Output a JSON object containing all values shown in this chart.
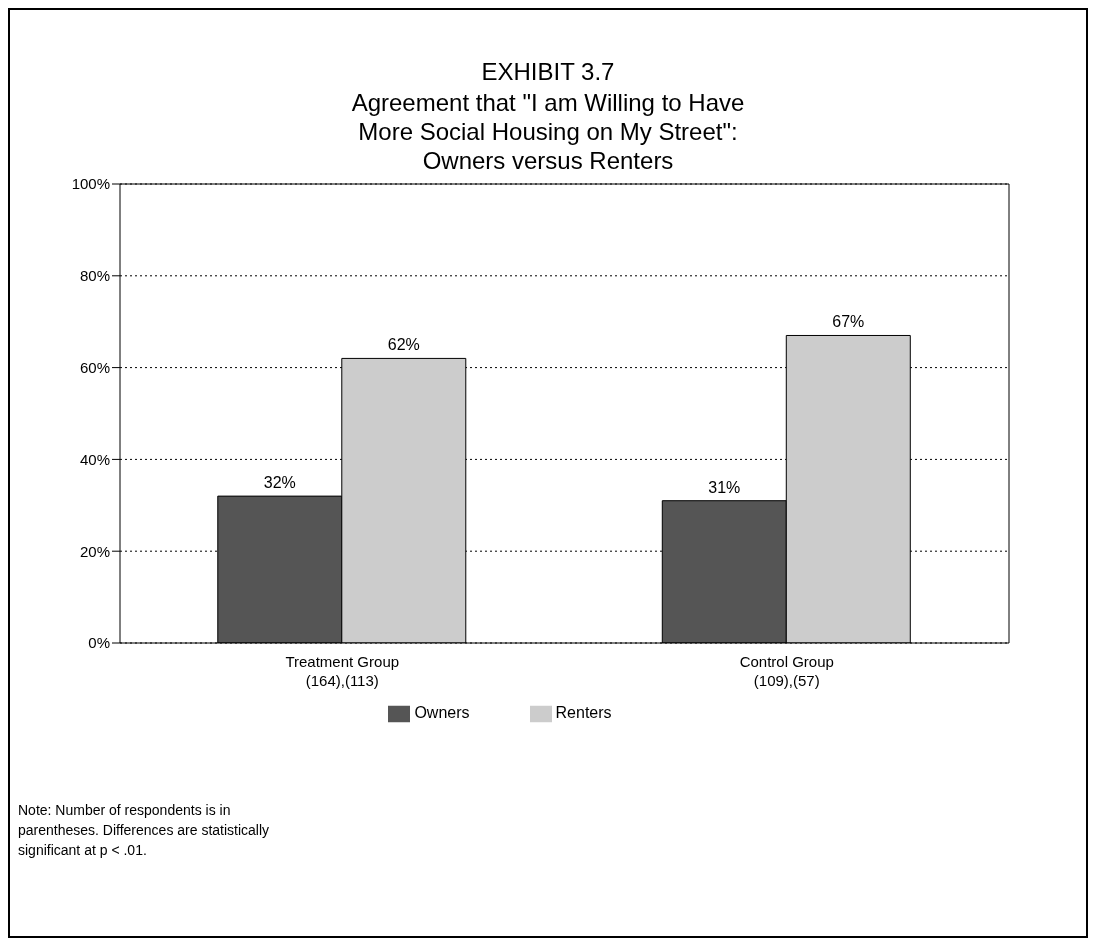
{
  "chart_data": {
    "type": "bar",
    "title": "EXHIBIT 3.7",
    "subtitle": "Agreement that \"I am Willing to Have More Social Housing on My Street\": Owners versus Renters",
    "categories": [
      "Treatment Group\n(164),(113)",
      "Control Group\n(109),(57)"
    ],
    "series": [
      {
        "name": "Owners",
        "color": "#555555",
        "values": [
          32,
          31
        ],
        "value_labels": [
          "32%",
          "31%"
        ]
      },
      {
        "name": "Renters",
        "color": "#cccccc",
        "values": [
          62,
          67
        ],
        "value_labels": [
          "62%",
          "67%"
        ]
      }
    ],
    "ylim": [
      0,
      100
    ],
    "yticks": [
      {
        "value": 0,
        "label": "0%"
      },
      {
        "value": 20,
        "label": "20%"
      },
      {
        "value": 40,
        "label": "40%"
      },
      {
        "value": 60,
        "label": "60%"
      },
      {
        "value": 80,
        "label": "80%"
      },
      {
        "value": 100,
        "label": "100%"
      }
    ],
    "grid": "y",
    "legend": "bottom",
    "annotations": [
      "Note: Number of respondents is in parentheses.  Differences are statistically significant at p < .01."
    ]
  }
}
